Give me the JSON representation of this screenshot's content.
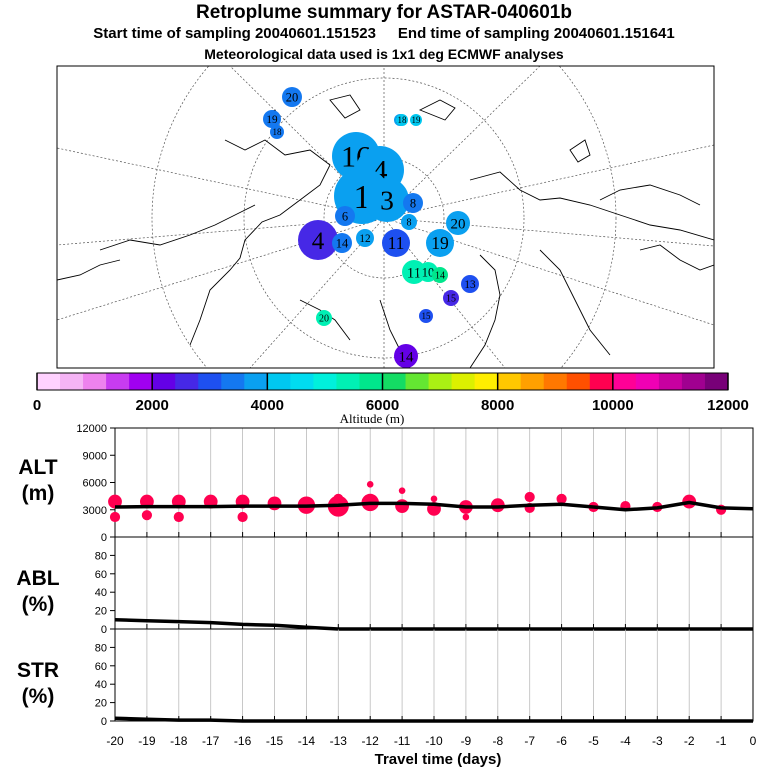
{
  "header": {
    "title": "Retroplume summary for ASTAR-040601b",
    "start_label": "Start time of sampling 20040601.151523",
    "end_label": "End time of sampling 20040601.151641",
    "met_label": "Meteorological data used is 1x1 deg ECMWF analyses"
  },
  "colorbar": {
    "label": "Altitude (m)",
    "tick_labels": [
      "0",
      "2000",
      "4000",
      "6000",
      "8000",
      "10000",
      "12000"
    ],
    "colors": [
      "#ffd2ff",
      "#f5b4f5",
      "#ee82ee",
      "#c83cf0",
      "#a000f0",
      "#6400e6",
      "#4628e6",
      "#1e50f0",
      "#1478f0",
      "#0aa0f0",
      "#00c8f0",
      "#00dcf0",
      "#00f0dc",
      "#00f0b4",
      "#00e68c",
      "#14dc64",
      "#64e632",
      "#aaf014",
      "#dcf000",
      "#ffee00",
      "#ffc800",
      "#ffa000",
      "#ff7800",
      "#ff5000",
      "#ff0050",
      "#ff0096",
      "#f000b4",
      "#c800a0",
      "#a00090",
      "#780078"
    ]
  },
  "map": {
    "clusters": [
      {
        "label": "20",
        "color": "#1478f0",
        "size": 10
      },
      {
        "label": "19",
        "color": "#1478f0",
        "size": 9
      },
      {
        "label": "18",
        "color": "#1478f0",
        "size": 7
      },
      {
        "label": "16",
        "color": "#0aa0f0",
        "size": 6
      },
      {
        "label": "18",
        "color": "#00c8f0",
        "size": 6
      },
      {
        "label": "19",
        "color": "#00c8f0",
        "size": 6
      },
      {
        "label": "16",
        "color": "#0aa0f0",
        "size": 24
      },
      {
        "label": "4",
        "color": "#0aa0f0",
        "size": 24
      },
      {
        "label": "1",
        "color": "#0aa0f0",
        "size": 28
      },
      {
        "label": "3",
        "color": "#0aa0f0",
        "size": 22
      },
      {
        "label": "20",
        "color": "#0aa0f0",
        "size": 12
      },
      {
        "label": "19",
        "color": "#0aa0f0",
        "size": 14
      },
      {
        "label": "11",
        "color": "#00f0b4",
        "size": 12
      },
      {
        "label": "10",
        "color": "#00f0b4",
        "size": 10
      },
      {
        "label": "14",
        "color": "#00e68c",
        "size": 8
      },
      {
        "label": "13",
        "color": "#1e50f0",
        "size": 9
      },
      {
        "label": "15",
        "color": "#4628e6",
        "size": 8
      },
      {
        "label": "15",
        "color": "#1e50f0",
        "size": 7
      },
      {
        "label": "14",
        "color": "#6400e6",
        "size": 12
      },
      {
        "label": "20",
        "color": "#00f0b4",
        "size": 8
      },
      {
        "label": "8",
        "color": "#1478f0",
        "size": 10
      },
      {
        "label": "6",
        "color": "#1478f0",
        "size": 10
      },
      {
        "label": "4",
        "color": "#4628e6",
        "size": 20
      },
      {
        "label": "11",
        "color": "#1e50f0",
        "size": 14
      },
      {
        "label": "12",
        "color": "#0aa0f0",
        "size": 9
      },
      {
        "label": "14",
        "color": "#1478f0",
        "size": 10
      },
      {
        "label": "8",
        "color": "#0aa0f0",
        "size": 8
      }
    ]
  },
  "chart_data": [
    {
      "type": "line",
      "name": "ALT",
      "ylabel": "ALT (m)",
      "ylabel_top": "ALT",
      "ylabel_bottom": "(m)",
      "xlim": [
        -20,
        0
      ],
      "ylim": [
        0,
        12000
      ],
      "yticks": [
        0,
        3000,
        6000,
        9000,
        12000
      ],
      "x": [
        -20,
        -19,
        -18,
        -17,
        -16,
        -15,
        -14,
        -13,
        -12,
        -11,
        -10,
        -9,
        -8,
        -7,
        -6,
        -5,
        -4,
        -3,
        -2,
        -1,
        0
      ],
      "mean": [
        3300,
        3350,
        3350,
        3350,
        3400,
        3400,
        3400,
        3500,
        3700,
        3700,
        3600,
        3300,
        3300,
        3500,
        3600,
        3300,
        3000,
        3200,
        3800,
        3200,
        3100
      ],
      "clusters_x": [
        -20,
        -20,
        -19,
        -19,
        -18,
        -18,
        -17,
        -16,
        -16,
        -15,
        -14,
        -13,
        -13,
        -12,
        -12,
        -11,
        -11,
        -10,
        -10,
        -9,
        -9,
        -8,
        -7,
        -7,
        -6,
        -5,
        -4,
        -3,
        -2,
        -1
      ],
      "clusters_y": [
        3900,
        2200,
        3900,
        2400,
        3900,
        2200,
        3900,
        3900,
        2200,
        3700,
        3500,
        3400,
        4200,
        3800,
        5800,
        3400,
        5100,
        3100,
        4200,
        3300,
        2200,
        3500,
        4400,
        3200,
        4200,
        3300,
        3400,
        3300,
        3900,
        3000
      ],
      "clusters_size": [
        3,
        2,
        3,
        2,
        3,
        2,
        3,
        3,
        2,
        3,
        4,
        5,
        2,
        4,
        1,
        3,
        1,
        3,
        1,
        3,
        1,
        3,
        2,
        2,
        2,
        2,
        2,
        2,
        3,
        2
      ],
      "cluster_color": "#ff0050"
    },
    {
      "type": "line",
      "name": "ABL",
      "ylabel": "ABL (%)",
      "ylabel_top": "ABL",
      "ylabel_bottom": "(%)",
      "xlim": [
        -20,
        0
      ],
      "ylim": [
        0,
        100
      ],
      "yticks": [
        0,
        20,
        40,
        60,
        80
      ],
      "x": [
        -20,
        -19,
        -18,
        -17,
        -16,
        -15,
        -14,
        -13,
        -12,
        -11,
        -10,
        -9,
        -8,
        -7,
        -6,
        -5,
        -4,
        -3,
        -2,
        -1,
        0
      ],
      "values": [
        10,
        9,
        8,
        7,
        5,
        4,
        2,
        0,
        0,
        0,
        0,
        0,
        0,
        0,
        0,
        0,
        0,
        0,
        0,
        0,
        0
      ]
    },
    {
      "type": "line",
      "name": "STR",
      "ylabel": "STR (%)",
      "ylabel_top": "STR",
      "ylabel_bottom": "(%)",
      "xlim": [
        -20,
        0
      ],
      "ylim": [
        0,
        100
      ],
      "yticks": [
        0,
        20,
        40,
        60,
        80
      ],
      "xlabel": "Travel time (days)",
      "xticks": [
        -20,
        -19,
        -18,
        -17,
        -16,
        -15,
        -14,
        -13,
        -12,
        -11,
        -10,
        -9,
        -8,
        -7,
        -6,
        -5,
        -4,
        -3,
        -2,
        -1,
        0
      ],
      "x": [
        -20,
        -19,
        -18,
        -17,
        -16,
        -15,
        -14,
        -13,
        -12,
        -11,
        -10,
        -9,
        -8,
        -7,
        -6,
        -5,
        -4,
        -3,
        -2,
        -1,
        0
      ],
      "values": [
        3,
        2,
        1,
        1,
        0,
        0,
        0,
        0,
        0,
        0,
        0,
        0,
        0,
        0,
        0,
        0,
        0,
        0,
        0,
        0,
        0
      ]
    }
  ]
}
